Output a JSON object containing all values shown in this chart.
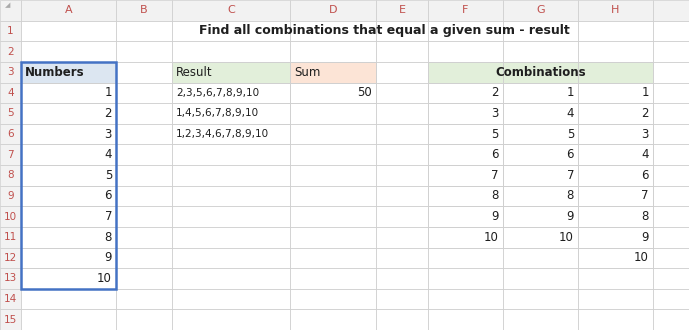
{
  "title": "Find all combinations that equal a given sum - result",
  "header_bg": "#f2f2f2",
  "grid_color": "#d0d0d0",
  "cell_bg_white": "#ffffff",
  "cell_bg_numbers_blue": "#dce6f1",
  "cell_bg_result_green": "#e2efda",
  "cell_bg_sum_orange": "#fce4d6",
  "cell_bg_combinations_green": "#e2efda",
  "row_header_bg": "#f2f2f2",
  "numbers_values": [
    1,
    2,
    3,
    4,
    5,
    6,
    7,
    8,
    9,
    10
  ],
  "result_values": [
    "2,3,5,6,7,8,9,10",
    "1,4,5,6,7,8,9,10",
    "1,2,3,4,6,7,8,9,10"
  ],
  "sum_value": "50",
  "combinations_F": [
    2,
    3,
    5,
    6,
    7,
    8,
    9,
    10,
    "",
    ""
  ],
  "combinations_G": [
    1,
    4,
    5,
    6,
    7,
    8,
    9,
    10,
    "",
    ""
  ],
  "combinations_H": [
    1,
    2,
    3,
    4,
    6,
    7,
    8,
    9,
    10,
    ""
  ]
}
